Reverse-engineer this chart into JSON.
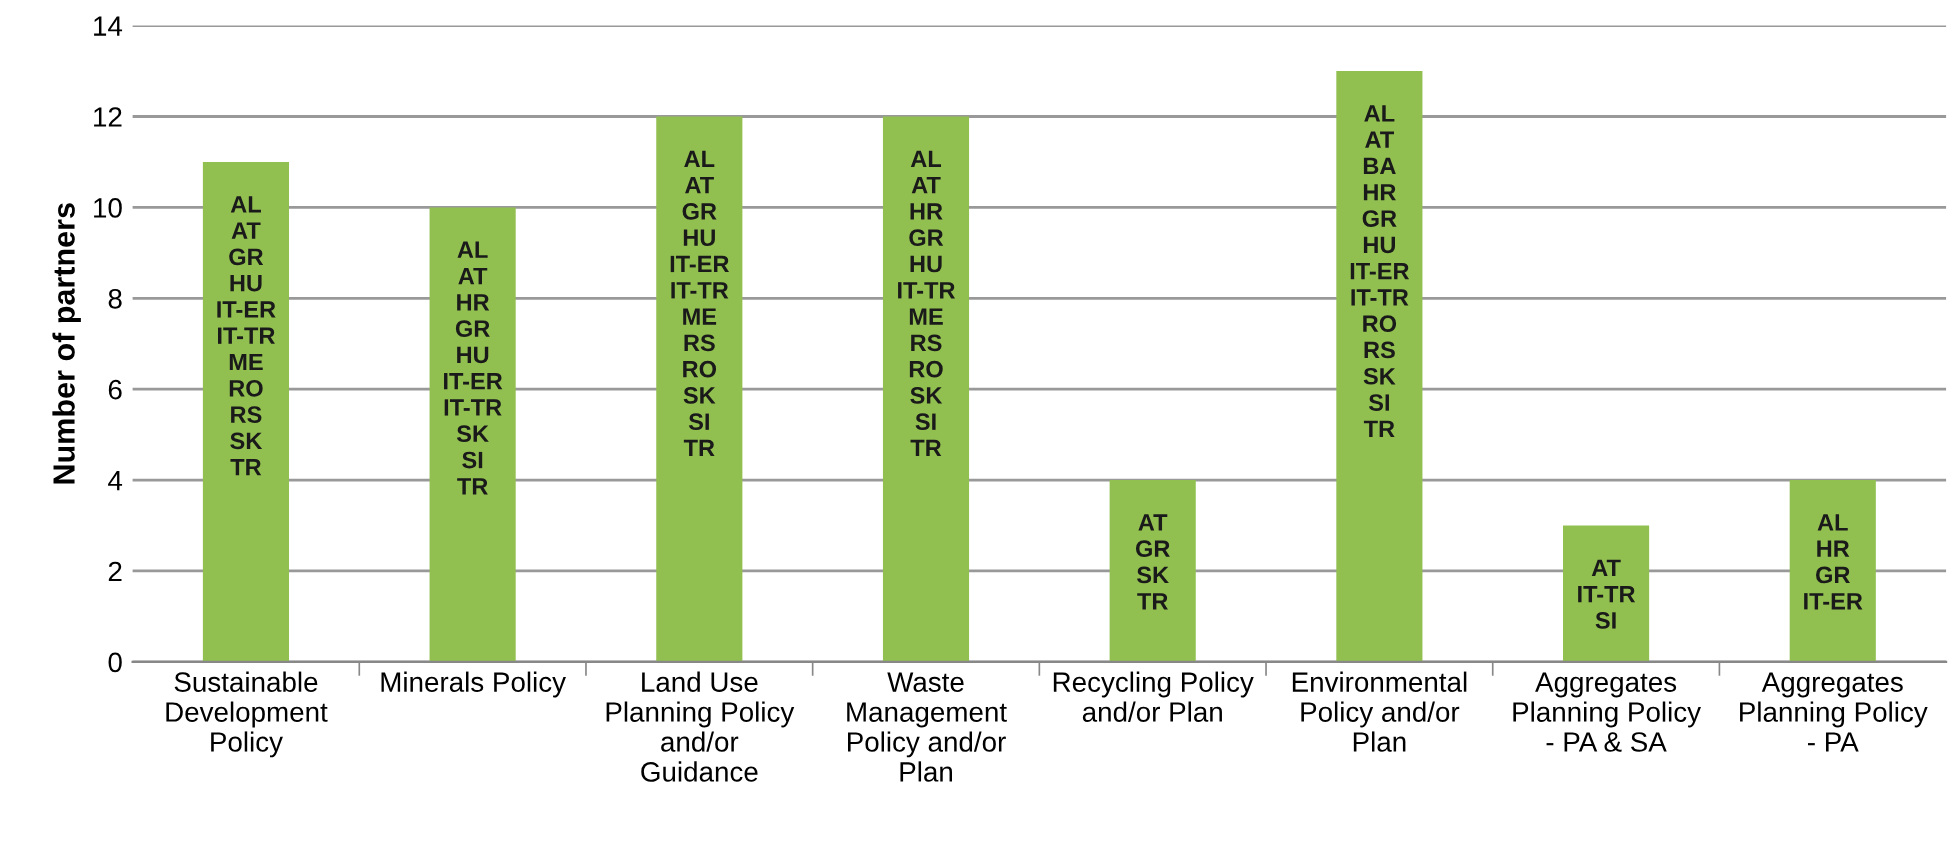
{
  "chart_data": {
    "type": "bar",
    "ylabel": "Number of partners",
    "categories": [
      "Sustainable\nDevelopment\nPolicy",
      "Minerals Policy",
      "Land Use\nPlanning Policy\nand/or\nGuidance",
      "Waste\nManagement\nPolicy and/or\nPlan",
      "Recycling Policy\nand/or Plan",
      "Environmental\nPolicy and/or\nPlan",
      "Aggregates\nPlanning Policy\n- PA & SA",
      "Aggregates\nPlanning Policy\n- PA"
    ],
    "values": [
      11,
      10,
      12,
      12,
      4,
      13,
      3,
      4
    ],
    "value_labels": [
      "AL\nAT\nGR\nHU\nIT-ER\nIT-TR\nME\nRO\nRS\nSK\nTR",
      "AL\nAT\nHR\nGR\nHU\nIT-ER\nIT-TR\nSK\nSI\nTR",
      "AL\nAT\nGR\nHU\nIT-ER\nIT-TR\nME\nRS\nRO\nSK\nSI\nTR",
      "AL\nAT\nHR\nGR\nHU\nIT-TR\nME\nRS\nRO\nSK\nSI\nTR",
      "AT\nGR\nSK\nTR",
      "AL\nAT\nBA\nHR\nGR\nHU\nIT-ER\nIT-TR\nRO\nRS\nSK\nSI\nTR",
      "AT\nIT-TR\nSI",
      "AL\nHR\nGR\nIT-ER"
    ],
    "color": "#92c050",
    "ylim": [
      0,
      14
    ],
    "yticks": [
      0,
      2,
      4,
      6,
      8,
      10,
      12,
      14
    ],
    "grid": "y",
    "legend": false
  }
}
